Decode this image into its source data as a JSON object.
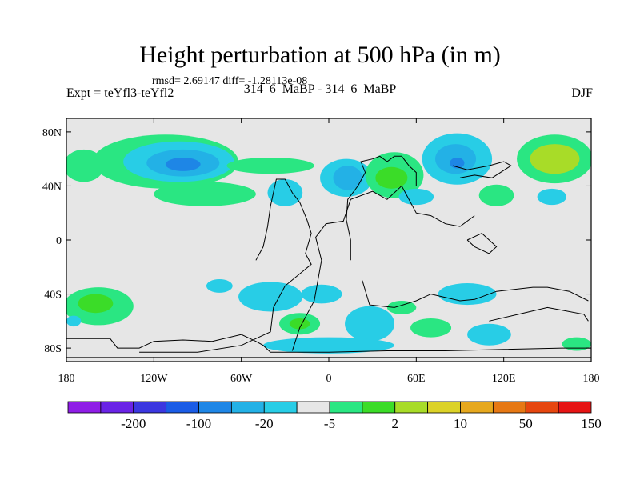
{
  "title": "Height perturbation at 500 hPa (in m)",
  "rmsd_text": "rmsd= 2.69147 diff= -1.28113e-08",
  "left_label": "Expt = teYfl3-teYfl2",
  "center_label": "314_6_MaBP - 314_6_MaBP",
  "season_label": "DJF",
  "map": {
    "lon_range": [
      -180,
      180
    ],
    "lat_range": [
      -90,
      90
    ],
    "background_color": "#e6e6e6",
    "y_ticks": [
      {
        "lat": 80,
        "label": "80N"
      },
      {
        "lat": 40,
        "label": "40N"
      },
      {
        "lat": 0,
        "label": "0"
      },
      {
        "lat": -40,
        "label": "40S"
      },
      {
        "lat": -80,
        "label": "80S"
      }
    ],
    "x_ticks": [
      {
        "lon": -180,
        "label": "180"
      },
      {
        "lon": -120,
        "label": "120W"
      },
      {
        "lon": -60,
        "label": "60W"
      },
      {
        "lon": 0,
        "label": "0"
      },
      {
        "lon": 60,
        "label": "60E"
      },
      {
        "lon": 120,
        "label": "120E"
      },
      {
        "lon": 180,
        "label": "180"
      }
    ]
  },
  "colorbar": {
    "colors": [
      "#8f1de6",
      "#6a23e6",
      "#3b37e0",
      "#1a5ce6",
      "#1e86e6",
      "#23b1e6",
      "#28cde6",
      "#e6e6e6",
      "#2ae682",
      "#3bdc28",
      "#a8dc28",
      "#dcd228",
      "#e6a81e",
      "#e67814",
      "#e6460f",
      "#e61414"
    ],
    "labels": [
      {
        "after_index": 1,
        "text": "-200"
      },
      {
        "after_index": 3,
        "text": "-100"
      },
      {
        "after_index": 5,
        "text": "-20"
      },
      {
        "after_index": 7,
        "text": "-5"
      },
      {
        "after_index": 9,
        "text": "2"
      },
      {
        "after_index": 11,
        "text": "10"
      },
      {
        "after_index": 13,
        "text": "50"
      },
      {
        "after_index": 15,
        "text": "150"
      }
    ]
  },
  "blobs": [
    {
      "lon": -168,
      "lat": 55,
      "rlon": 14,
      "rlat": 12,
      "color": "#2ae682"
    },
    {
      "lon": -112,
      "lat": 58,
      "rlon": 50,
      "rlat": 20,
      "color": "#2ae682"
    },
    {
      "lon": -103,
      "lat": 58,
      "rlon": 38,
      "rlat": 15,
      "color": "#28cde6"
    },
    {
      "lon": -100,
      "lat": 57,
      "rlon": 25,
      "rlat": 10,
      "color": "#23b1e6"
    },
    {
      "lon": -100,
      "lat": 56,
      "rlon": 12,
      "rlat": 5,
      "color": "#1e86e6"
    },
    {
      "lon": -85,
      "lat": 34,
      "rlon": 35,
      "rlat": 9,
      "color": "#2ae682"
    },
    {
      "lon": -30,
      "lat": 35,
      "rlon": 12,
      "rlat": 10,
      "color": "#28cde6"
    },
    {
      "lon": -40,
      "lat": 55,
      "rlon": 30,
      "rlat": 6,
      "color": "#2ae682"
    },
    {
      "lon": 12,
      "lat": 46,
      "rlon": 18,
      "rlat": 14,
      "color": "#28cde6"
    },
    {
      "lon": 13,
      "lat": 46,
      "rlon": 10,
      "rlat": 9,
      "color": "#23b1e6"
    },
    {
      "lon": 45,
      "lat": 48,
      "rlon": 20,
      "rlat": 17,
      "color": "#2ae682"
    },
    {
      "lon": 43,
      "lat": 46,
      "rlon": 11,
      "rlat": 8,
      "color": "#3bdc28"
    },
    {
      "lon": 60,
      "lat": 32,
      "rlon": 12,
      "rlat": 6,
      "color": "#28cde6"
    },
    {
      "lon": 88,
      "lat": 60,
      "rlon": 24,
      "rlat": 19,
      "color": "#28cde6"
    },
    {
      "lon": 87,
      "lat": 60,
      "rlon": 14,
      "rlat": 11,
      "color": "#23b1e6"
    },
    {
      "lon": 88,
      "lat": 57,
      "rlon": 5,
      "rlat": 4,
      "color": "#1e86e6"
    },
    {
      "lon": 115,
      "lat": 33,
      "rlon": 12,
      "rlat": 8,
      "color": "#2ae682"
    },
    {
      "lon": 153,
      "lat": 32,
      "rlon": 10,
      "rlat": 6,
      "color": "#28cde6"
    },
    {
      "lon": 155,
      "lat": 60,
      "rlon": 26,
      "rlat": 18,
      "color": "#2ae682"
    },
    {
      "lon": 155,
      "lat": 60,
      "rlon": 17,
      "rlat": 11,
      "color": "#a8dc28"
    },
    {
      "lon": -158,
      "lat": -49,
      "rlon": 24,
      "rlat": 14,
      "color": "#2ae682"
    },
    {
      "lon": -160,
      "lat": -47,
      "rlon": 12,
      "rlat": 7,
      "color": "#3bdc28"
    },
    {
      "lon": -75,
      "lat": -34,
      "rlon": 9,
      "rlat": 5,
      "color": "#28cde6"
    },
    {
      "lon": -40,
      "lat": -42,
      "rlon": 22,
      "rlat": 11,
      "color": "#28cde6"
    },
    {
      "lon": -5,
      "lat": -40,
      "rlon": 14,
      "rlat": 7,
      "color": "#28cde6"
    },
    {
      "lon": 95,
      "lat": -40,
      "rlon": 20,
      "rlat": 8,
      "color": "#28cde6"
    },
    {
      "lon": 50,
      "lat": -50,
      "rlon": 10,
      "rlat": 5,
      "color": "#2ae682"
    },
    {
      "lon": -20,
      "lat": -62,
      "rlon": 14,
      "rlat": 8,
      "color": "#2ae682"
    },
    {
      "lon": -20,
      "lat": -62,
      "rlon": 7,
      "rlat": 4,
      "color": "#3bdc28"
    },
    {
      "lon": 28,
      "lat": -62,
      "rlon": 17,
      "rlat": 13,
      "color": "#28cde6"
    },
    {
      "lon": 70,
      "lat": -65,
      "rlon": 14,
      "rlat": 7,
      "color": "#2ae682"
    },
    {
      "lon": 110,
      "lat": -70,
      "rlon": 15,
      "rlat": 8,
      "color": "#28cde6"
    },
    {
      "lon": 0,
      "lat": -78,
      "rlon": 45,
      "rlat": 6,
      "color": "#28cde6"
    },
    {
      "lon": -175,
      "lat": -60,
      "rlon": 5,
      "rlat": 4,
      "color": "#28cde6"
    },
    {
      "lon": 170,
      "lat": -77,
      "rlon": 10,
      "rlat": 5,
      "color": "#2ae682"
    }
  ],
  "coastline": [
    [
      [
        -180,
        -73
      ],
      [
        -150,
        -73
      ],
      [
        -145,
        -80
      ],
      [
        -130,
        -80
      ],
      [
        -120,
        -75
      ],
      [
        -100,
        -74
      ],
      [
        -80,
        -75
      ],
      [
        -60,
        -70
      ],
      [
        -50,
        -75
      ],
      [
        -45,
        -78
      ],
      [
        -40,
        -83
      ],
      [
        0,
        -83
      ],
      [
        40,
        -82
      ],
      [
        80,
        -82
      ],
      [
        120,
        -81
      ],
      [
        160,
        -80
      ],
      [
        180,
        -80
      ],
      [
        180,
        -87
      ],
      [
        -180,
        -87
      ],
      [
        -180,
        -73
      ]
    ],
    [
      [
        -130,
        -83
      ],
      [
        -90,
        -83
      ],
      [
        -60,
        -78
      ],
      [
        -40,
        -68
      ],
      [
        -38,
        -50
      ],
      [
        -30,
        -34
      ],
      [
        -12,
        -18
      ],
      [
        -16,
        -10
      ],
      [
        -12,
        5
      ],
      [
        -15,
        15
      ],
      [
        -20,
        28
      ],
      [
        -25,
        35
      ],
      [
        -30,
        45
      ],
      [
        -36,
        45
      ],
      [
        -40,
        25
      ],
      [
        -42,
        10
      ],
      [
        -45,
        -5
      ],
      [
        -50,
        -15
      ]
    ],
    [
      [
        -25,
        -82
      ],
      [
        -20,
        -65
      ],
      [
        -10,
        -45
      ],
      [
        -5,
        -15
      ],
      [
        -9,
        2
      ],
      [
        -2,
        12
      ],
      [
        10,
        14
      ],
      [
        15,
        30
      ],
      [
        30,
        36
      ],
      [
        40,
        30
      ],
      [
        50,
        40
      ],
      [
        55,
        30
      ],
      [
        60,
        20
      ],
      [
        70,
        18
      ],
      [
        80,
        12
      ],
      [
        90,
        10
      ],
      [
        100,
        18
      ]
    ],
    [
      [
        15,
        -15
      ],
      [
        15,
        0
      ],
      [
        12,
        15
      ],
      [
        13,
        30
      ],
      [
        20,
        40
      ],
      [
        25,
        50
      ],
      [
        22,
        58
      ],
      [
        30,
        60
      ],
      [
        35,
        62
      ],
      [
        40,
        58
      ],
      [
        45,
        62
      ],
      [
        50,
        62
      ],
      [
        55,
        55
      ],
      [
        60,
        50
      ],
      [
        60,
        40
      ]
    ],
    [
      [
        23,
        -30
      ],
      [
        28,
        -48
      ],
      [
        45,
        -50
      ],
      [
        60,
        -45
      ],
      [
        70,
        -40
      ],
      [
        90,
        -45
      ],
      [
        100,
        -44
      ],
      [
        115,
        -38
      ],
      [
        140,
        -35
      ],
      [
        150,
        -35
      ],
      [
        165,
        -38
      ],
      [
        178,
        -45
      ]
    ],
    [
      [
        110,
        -60
      ],
      [
        130,
        -55
      ],
      [
        150,
        -50
      ],
      [
        160,
        -52
      ],
      [
        175,
        -55
      ],
      [
        178,
        -60
      ]
    ],
    [
      [
        95,
        0
      ],
      [
        100,
        -5
      ],
      [
        110,
        -10
      ],
      [
        115,
        -5
      ],
      [
        105,
        5
      ],
      [
        95,
        0
      ]
    ],
    [
      [
        85,
        55
      ],
      [
        95,
        52
      ],
      [
        110,
        55
      ],
      [
        120,
        58
      ],
      [
        125,
        55
      ],
      [
        112,
        46
      ],
      [
        100,
        48
      ],
      [
        90,
        46
      ]
    ]
  ]
}
